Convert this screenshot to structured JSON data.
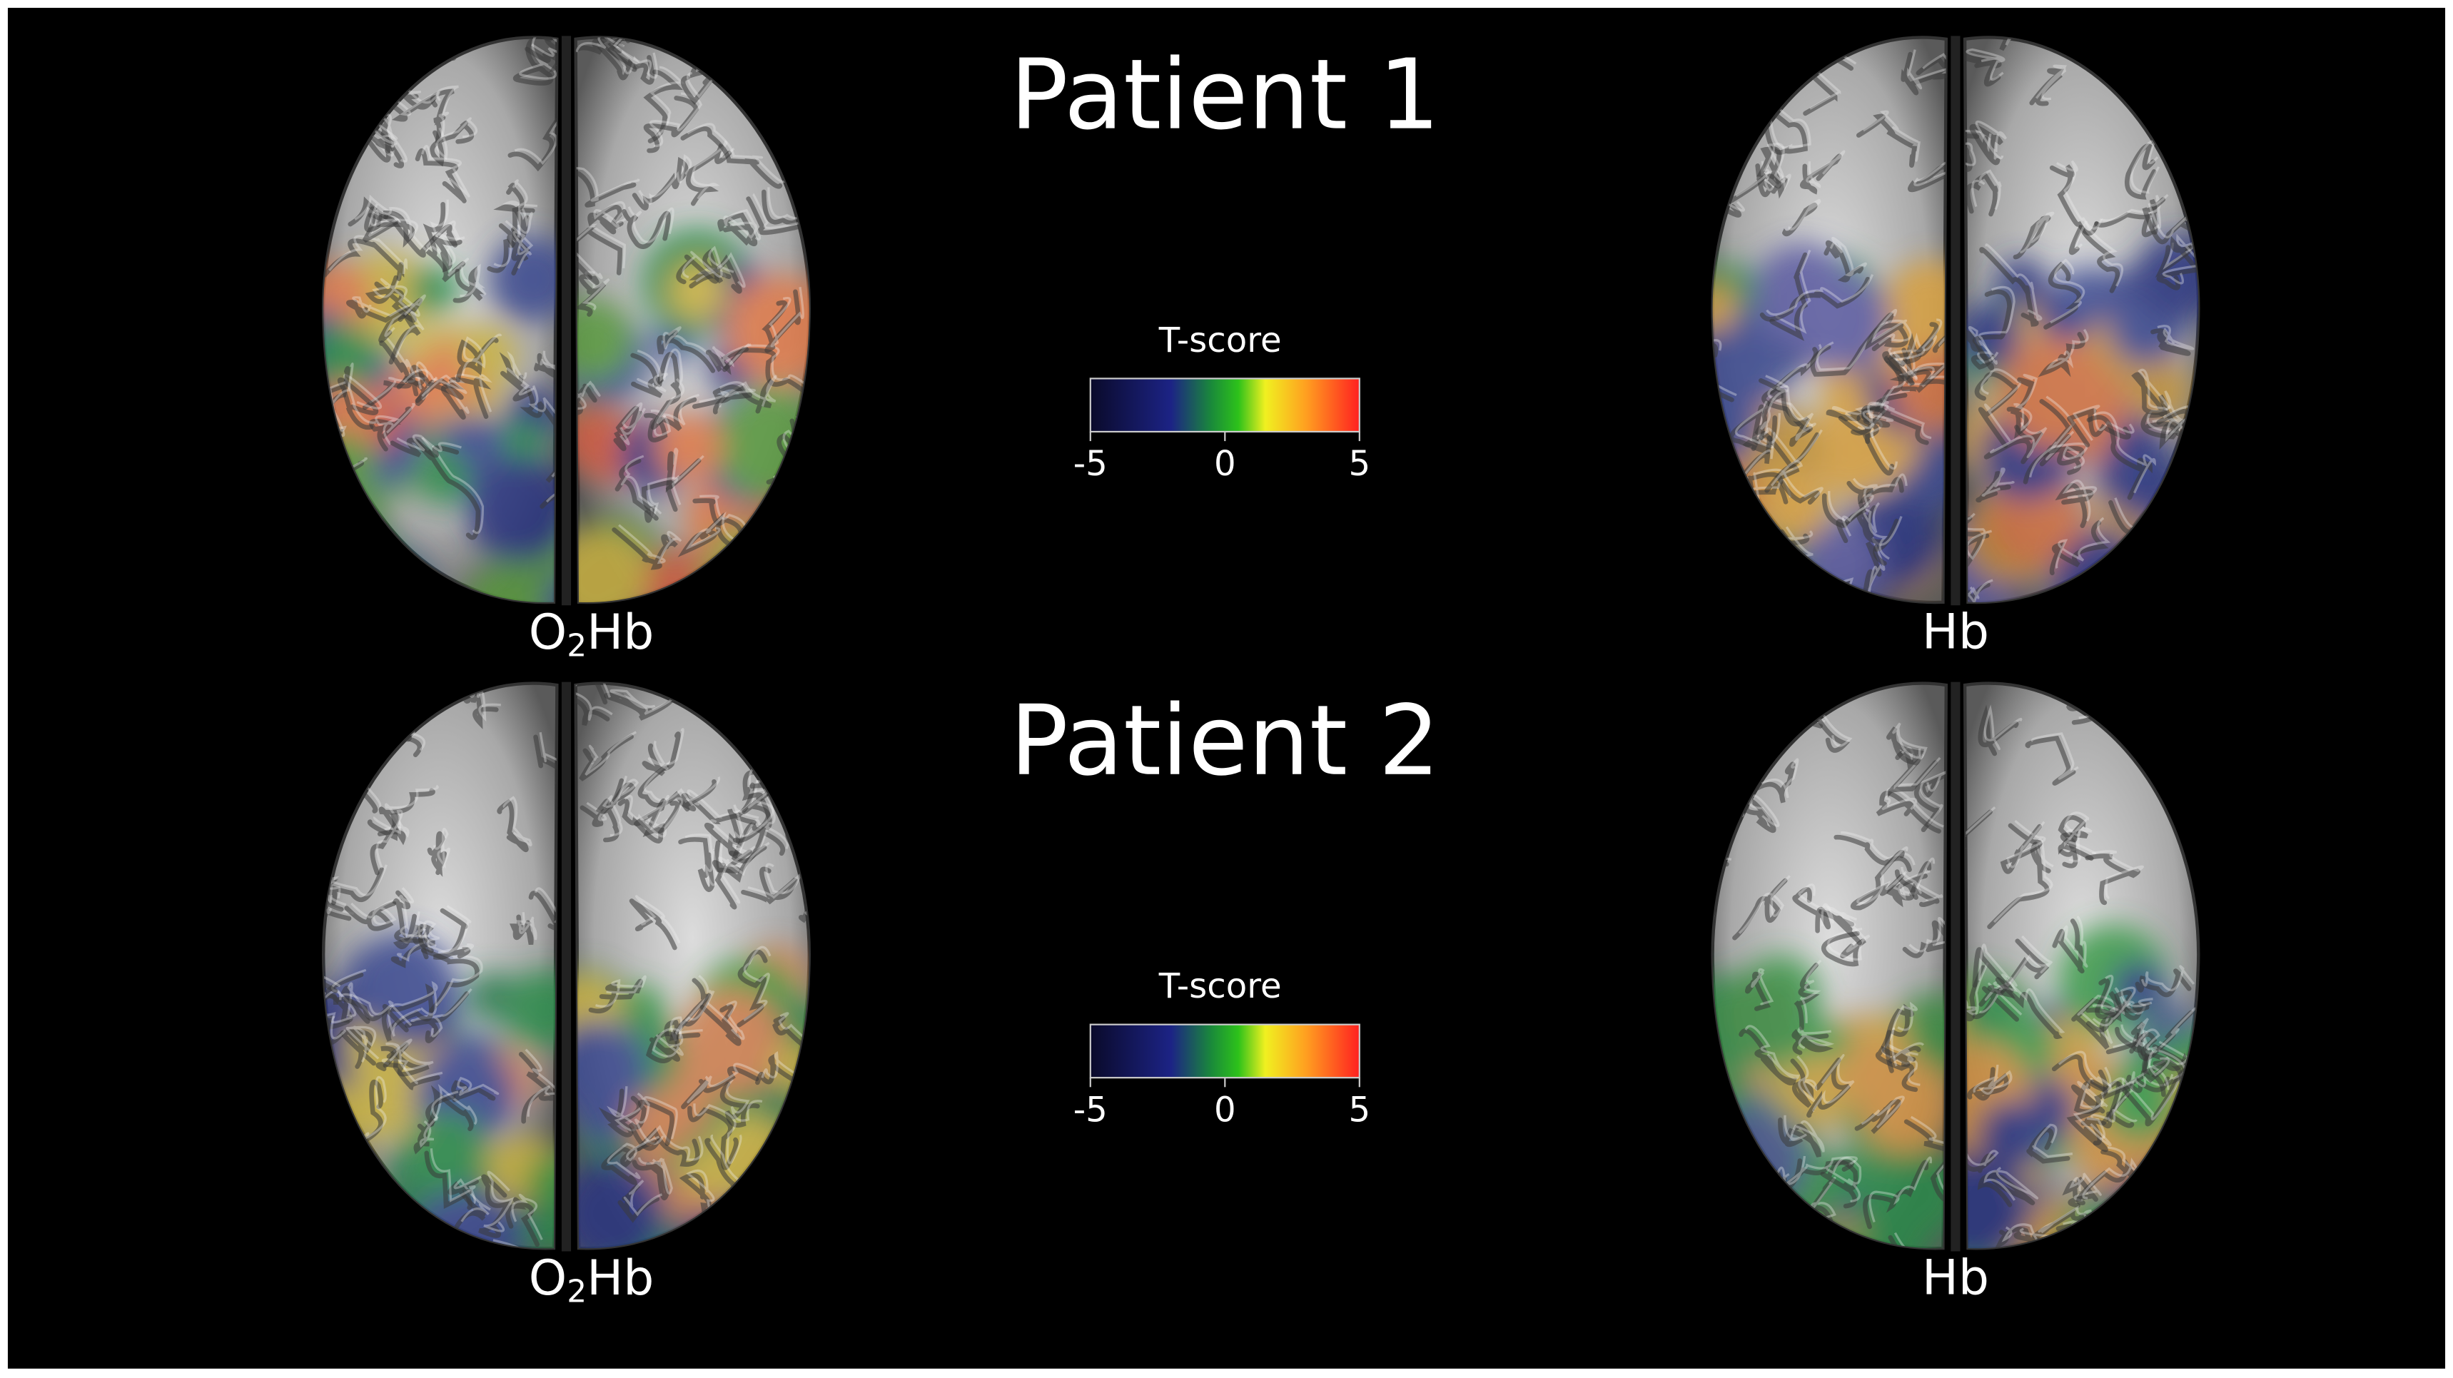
{
  "panels": [
    {
      "title": "Patient 1",
      "left_label": {
        "prefix": "O",
        "subscript": "2",
        "suffix": "Hb"
      },
      "right_label": "Hb",
      "colorbar": {
        "title": "T-score",
        "min": -5,
        "max": 5,
        "ticks": [
          -5,
          0,
          5
        ]
      }
    },
    {
      "title": "Patient 2",
      "left_label": {
        "prefix": "O",
        "subscript": "2",
        "suffix": "Hb"
      },
      "right_label": "Hb",
      "colorbar": {
        "title": "T-score",
        "min": -5,
        "max": 5,
        "ticks": [
          -5,
          0,
          5
        ]
      }
    }
  ]
}
